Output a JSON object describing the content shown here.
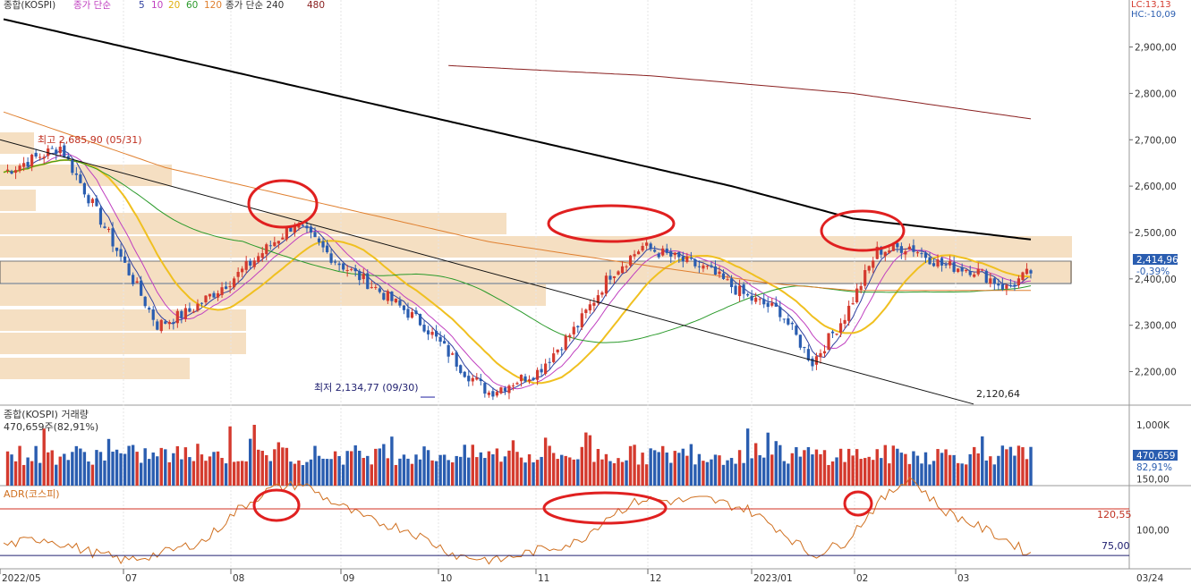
{
  "header": {
    "prefix": "종합(KOSPI)",
    "ma_prefix": "종가 단순",
    "ma_periods": [
      "5",
      "10",
      "20",
      "60",
      "120"
    ],
    "ma_long_label": "종가 단순 240",
    "ma_480": "480",
    "lc": "LC:13,13",
    "hc": "HC:-10,09"
  },
  "price_panel": {
    "y_ticks": [
      "2,900,00",
      "2,800,00",
      "2,700,00",
      "2,600,00",
      "2,500,00",
      "2,400,00",
      "2,300,00",
      "2,200,00"
    ],
    "current_price": "2,414,96",
    "current_change": "-0,39%",
    "high_note": "최고 2,685,90 (05/31)",
    "low_note": "최저 2,134,77 (09/30)",
    "trendline_value": "2,120,64"
  },
  "volume_panel": {
    "title": "종합(KOSPI) 거래량",
    "subtitle": "470,659주(82,91%)",
    "y_tick": "1,000K",
    "current_value": "470,659",
    "current_pct": "82,91%"
  },
  "adr_panel": {
    "title": "ADR(코스피)",
    "y_ticks": [
      "150,00",
      "100,00"
    ],
    "upper_line_value": "120,55",
    "lower_line_value": "75,00"
  },
  "x_axis": {
    "labels": [
      "2022/05",
      "07",
      "08",
      "09",
      "10",
      "11",
      "12",
      "2023/01",
      "02",
      "03"
    ],
    "right_label": "03/24"
  },
  "colors": {
    "up": "#d43a2e",
    "down": "#2a5db0",
    "ma5": "#3040a0",
    "ma10": "#c040c0",
    "ma20": "#f0c020",
    "ma60": "#2a9a2a",
    "ma120": "#e08030",
    "ma240": "#000000",
    "ma480": "#8a2020",
    "adr_line": "#d07020",
    "volume_profile": "#f5dfc2",
    "circle": "#e02020"
  },
  "chart_data": [
    {
      "type": "candlestick",
      "title": "종합(KOSPI)",
      "x_range": [
        "2022/05",
        "2023/03/24"
      ],
      "ylim": [
        2120,
        2960
      ],
      "last_close": 2414.96,
      "last_change_pct": -0.39,
      "period_high": {
        "value": 2685.9,
        "date": "05/31"
      },
      "period_low": {
        "value": 2134.77,
        "date": "09/30"
      },
      "trendline_end_value": 2120.64,
      "key_closes": [
        {
          "date": "2022/05",
          "value": 2630
        },
        {
          "date": "2022/05/31",
          "value": 2685.9
        },
        {
          "date": "2022/07",
          "value": 2320
        },
        {
          "date": "2022/08",
          "value": 2520
        },
        {
          "date": "2022/09",
          "value": 2380
        },
        {
          "date": "2022/09/30",
          "value": 2155
        },
        {
          "date": "2022/11",
          "value": 2460
        },
        {
          "date": "2022/12",
          "value": 2370
        },
        {
          "date": "2023/01",
          "value": 2220
        },
        {
          "date": "2023/02",
          "value": 2470
        },
        {
          "date": "2023/03",
          "value": 2390
        },
        {
          "date": "2023/03/24",
          "value": 2414.96
        }
      ],
      "moving_averages": [
        "5",
        "10",
        "20",
        "60",
        "120",
        "240",
        "480"
      ]
    },
    {
      "type": "bar",
      "title": "종합(KOSPI) 거래량",
      "last_value": 470659,
      "last_pct": 82.91,
      "ylim": [
        0,
        1100000
      ]
    },
    {
      "type": "line",
      "title": "ADR(코스피)",
      "ylim": [
        60,
        165
      ],
      "reference_lines": [
        120.55,
        75.0
      ],
      "key_points": [
        {
          "date": "2022/05",
          "value": 85
        },
        {
          "date": "2022/08",
          "value": 145
        },
        {
          "date": "2022/09",
          "value": 105
        },
        {
          "date": "2022/10",
          "value": 70
        },
        {
          "date": "2022/11",
          "value": 130
        },
        {
          "date": "2022/12",
          "value": 128
        },
        {
          "date": "2023/01",
          "value": 75
        },
        {
          "date": "2023/02",
          "value": 152
        },
        {
          "date": "2023/03",
          "value": 88
        },
        {
          "date": "2023/03/24",
          "value": 76
        }
      ]
    }
  ]
}
